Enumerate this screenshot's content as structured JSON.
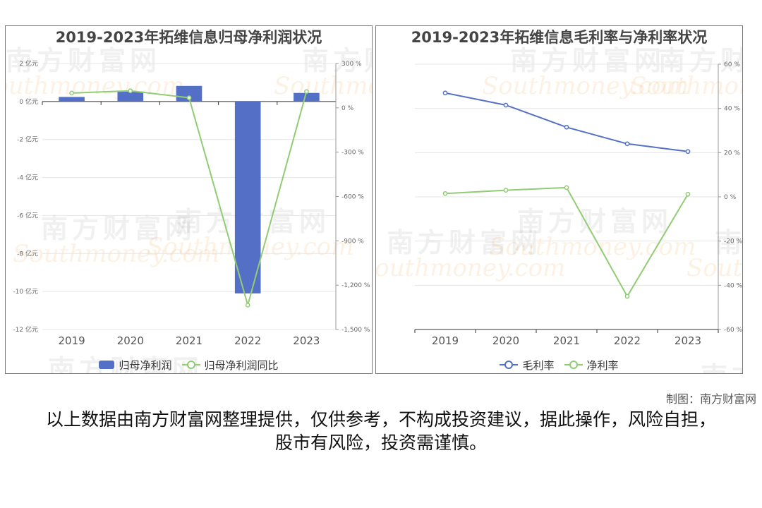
{
  "credit": "制图：南方财富网",
  "disclaimer": "以上数据由南方财富网整理提供，仅供参考，不构成投资建议，据此操作，风险自担，股市有风险，投资需谨慎。",
  "watermark": {
    "cn": "南方财富网",
    "en": "Southmoney.com"
  },
  "colors": {
    "bar": "#5470c6",
    "line_green": "#91cc75",
    "line_blue": "#5470c6"
  },
  "chart_data": [
    {
      "type": "bar",
      "title": "2019-2023年拓维信息归母净利润状况",
      "categories": [
        "2019",
        "2020",
        "2021",
        "2022",
        "2023"
      ],
      "y_left_ticks": [
        "2 亿元",
        "0 亿元",
        "-2 亿元",
        "-4 亿元",
        "-6 亿元",
        "-8 亿元",
        "-10 亿元",
        "-12 亿元"
      ],
      "y_right_ticks": [
        "300 %",
        "0 %",
        "-300 %",
        "-600 %",
        "-900 %",
        "-1,200 %",
        "-1,500 %"
      ],
      "ylim_left": [
        -12,
        2
      ],
      "ylim_right": [
        -1500,
        300
      ],
      "series": [
        {
          "name": "归母净利润",
          "type": "bar",
          "axis": "left",
          "values": [
            0.24,
            0.52,
            0.82,
            -10.1,
            0.45
          ]
        },
        {
          "name": "归母净利润同比",
          "type": "line",
          "axis": "right",
          "values": [
            100,
            115,
            68,
            -1335,
            110
          ]
        }
      ],
      "legend": "bottom-center",
      "grid": true
    },
    {
      "type": "line",
      "title": "2019-2023年拓维信息毛利率与净利率状况",
      "categories": [
        "2019",
        "2020",
        "2021",
        "2022",
        "2023"
      ],
      "y_right_ticks": [
        "60 %",
        "40 %",
        "20 %",
        "0 %",
        "-20 %",
        "-40 %",
        "-60 %"
      ],
      "ylim_right": [
        -60,
        60
      ],
      "series": [
        {
          "name": "毛利率",
          "values": [
            47,
            41.5,
            31.5,
            24,
            20.5
          ]
        },
        {
          "name": "净利率",
          "values": [
            1.5,
            3,
            4.2,
            -45,
            1.2
          ]
        }
      ],
      "legend": "bottom-center",
      "grid": true
    }
  ]
}
